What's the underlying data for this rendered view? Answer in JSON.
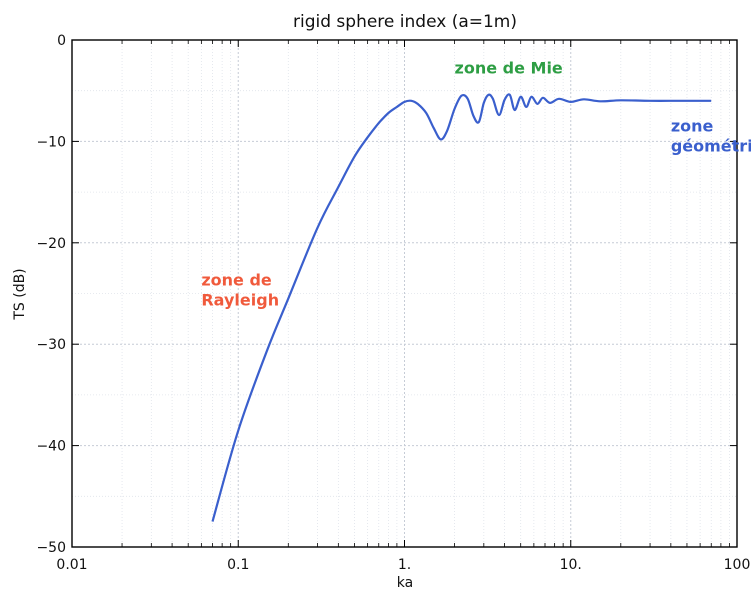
{
  "chart_data": {
    "type": "line",
    "title": "rigid sphere index (a=1m)",
    "xlabel": "ka",
    "ylabel": "TS (dB)",
    "x_scale": "log",
    "xlim": [
      0.01,
      100
    ],
    "ylim": [
      -50,
      0
    ],
    "x_ticks": [
      0.01,
      0.1,
      1,
      10,
      100
    ],
    "x_tick_labels": [
      "0.01",
      "0.1",
      "1.",
      "10.",
      "100"
    ],
    "y_ticks": [
      0,
      -10,
      -20,
      -30,
      -40,
      -50
    ],
    "y_tick_labels": [
      "0",
      "−10",
      "−20",
      "−30",
      "−40",
      "−50"
    ],
    "grid": true,
    "series": [
      {
        "color": "#3a5fcd",
        "x": [
          0.07,
          0.1,
          0.15,
          0.2,
          0.3,
          0.4,
          0.5,
          0.6,
          0.7,
          0.8,
          0.9,
          1.0,
          1.1,
          1.2,
          1.35,
          1.5,
          1.65,
          1.8,
          2.0,
          2.2,
          2.4,
          2.6,
          2.8,
          3.0,
          3.2,
          3.4,
          3.7,
          4.0,
          4.3,
          4.6,
          5.0,
          5.4,
          5.8,
          6.3,
          6.8,
          7.5,
          8.5,
          10,
          12,
          15,
          20,
          30,
          45,
          70
        ],
        "y": [
          -47.5,
          -38.5,
          -30.5,
          -25.5,
          -18.5,
          -14.5,
          -11.5,
          -9.6,
          -8.2,
          -7.2,
          -6.6,
          -6.1,
          -6.0,
          -6.3,
          -7.2,
          -8.7,
          -9.8,
          -9.0,
          -6.8,
          -5.5,
          -5.8,
          -7.5,
          -8.1,
          -6.2,
          -5.4,
          -5.8,
          -7.4,
          -5.9,
          -5.4,
          -6.9,
          -5.6,
          -6.6,
          -5.6,
          -6.3,
          -5.7,
          -6.2,
          -5.8,
          -6.1,
          -5.85,
          -6.05,
          -5.95,
          -6.0,
          -6.0,
          -6.0
        ]
      }
    ],
    "annotations": [
      {
        "text": "zone de Mie",
        "x": 2.0,
        "y": -3.3,
        "color": "#2e9e44"
      },
      {
        "text": "zone de",
        "x": 0.06,
        "y": -24.2,
        "color": "#f05a3c"
      },
      {
        "text": "Rayleigh",
        "x": 0.06,
        "y": -26.2,
        "color": "#f05a3c"
      },
      {
        "text": "zone",
        "x": 40,
        "y": -9.0,
        "color": "#3a5fcd"
      },
      {
        "text": "géométrique",
        "x": 40,
        "y": -11.0,
        "color": "#3a5fcd"
      }
    ]
  }
}
